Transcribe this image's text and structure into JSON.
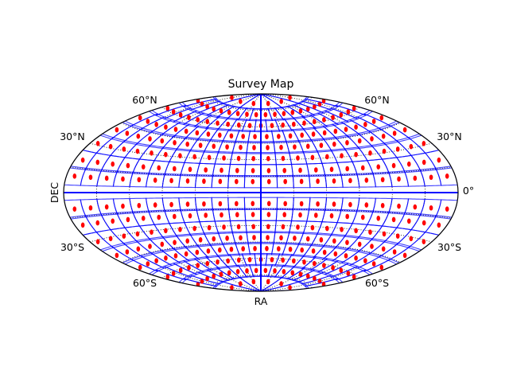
{
  "chart_data": {
    "type": "scatter",
    "projection": "aitoff",
    "title": "Survey Map",
    "xlabel": "RA",
    "ylabel": "DEC",
    "grid": true,
    "lat_labels_left": [
      "60°N",
      "30°N",
      "30°S",
      "60°S"
    ],
    "lat_labels_right": [
      "60°N",
      "30°N",
      "0°",
      "30°S",
      "60°S"
    ],
    "colors": {
      "fields": "#0000ff",
      "centers": "#ff0000",
      "graticule": "#000000"
    },
    "field_rows": [
      {
        "dec": 81,
        "width_deg": 60,
        "count": 6
      },
      {
        "dec": 71,
        "width_deg": 20,
        "count": 18
      },
      {
        "dec": 61,
        "width_deg": 17,
        "count": 21
      },
      {
        "dec": 51,
        "width_deg": 15,
        "count": 24
      },
      {
        "dec": 41,
        "width_deg": 15,
        "count": 24
      },
      {
        "dec": 31,
        "width_deg": 15,
        "count": 24
      },
      {
        "dec": 20,
        "width_deg": 15,
        "count": 24
      },
      {
        "dec": 10,
        "width_deg": 15,
        "count": 24
      },
      {
        "dec": -10,
        "width_deg": 15,
        "count": 24
      },
      {
        "dec": -20,
        "width_deg": 15,
        "count": 24
      },
      {
        "dec": -31,
        "width_deg": 15,
        "count": 24
      },
      {
        "dec": -41,
        "width_deg": 15,
        "count": 24
      },
      {
        "dec": -51,
        "width_deg": 15,
        "count": 24
      },
      {
        "dec": -61,
        "width_deg": 17,
        "count": 21
      },
      {
        "dec": -71,
        "width_deg": 20,
        "count": 18
      },
      {
        "dec": -81,
        "width_deg": 60,
        "count": 6
      }
    ]
  }
}
